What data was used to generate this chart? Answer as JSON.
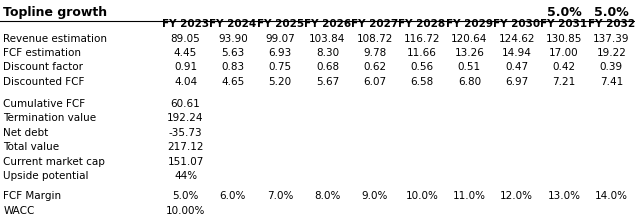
{
  "title": "Topline growth",
  "topline_pct1": "5.0%",
  "topline_pct2": "5.0%",
  "columns": [
    "",
    "FY 2023",
    "FY 2024",
    "FY 2025",
    "FY 2026",
    "FY 2027",
    "FY 2028",
    "FY 2029",
    "FY 2030",
    "FY 2031",
    "FY 2032"
  ],
  "rows": [
    [
      "Revenue estimation",
      "89.05",
      "93.90",
      "99.07",
      "103.84",
      "108.72",
      "116.72",
      "120.64",
      "124.62",
      "130.85",
      "137.39"
    ],
    [
      "FCF estimation",
      "4.45",
      "5.63",
      "6.93",
      "8.30",
      "9.78",
      "11.66",
      "13.26",
      "14.94",
      "17.00",
      "19.22"
    ],
    [
      "Discount factor",
      "0.91",
      "0.83",
      "0.75",
      "0.68",
      "0.62",
      "0.56",
      "0.51",
      "0.47",
      "0.42",
      "0.39"
    ],
    [
      "Discounted FCF",
      "4.04",
      "4.65",
      "5.20",
      "5.67",
      "6.07",
      "6.58",
      "6.80",
      "6.97",
      "7.21",
      "7.41"
    ]
  ],
  "summary_rows": [
    [
      "Cumulative FCF",
      "60.61"
    ],
    [
      "Termination value",
      "192.24"
    ],
    [
      "Net debt",
      "-35.73"
    ],
    [
      "Total value",
      "217.12"
    ],
    [
      "Current market cap",
      "151.07"
    ],
    [
      "Upside potential",
      "44%"
    ]
  ],
  "bottom_rows": [
    [
      "FCF Margin",
      "5.0%",
      "6.0%",
      "7.0%",
      "8.0%",
      "9.0%",
      "10.0%",
      "11.0%",
      "12.0%",
      "13.0%",
      "14.0%"
    ],
    [
      "WACC",
      "10.00%",
      "",
      "",
      "",
      "",
      "",
      "",
      "",
      "",
      ""
    ]
  ],
  "bg_color": "#ffffff",
  "text_color": "#000000",
  "line_color": "#000000",
  "title_fontsize": 9,
  "header_fontsize": 7.5,
  "cell_fontsize": 7.5
}
